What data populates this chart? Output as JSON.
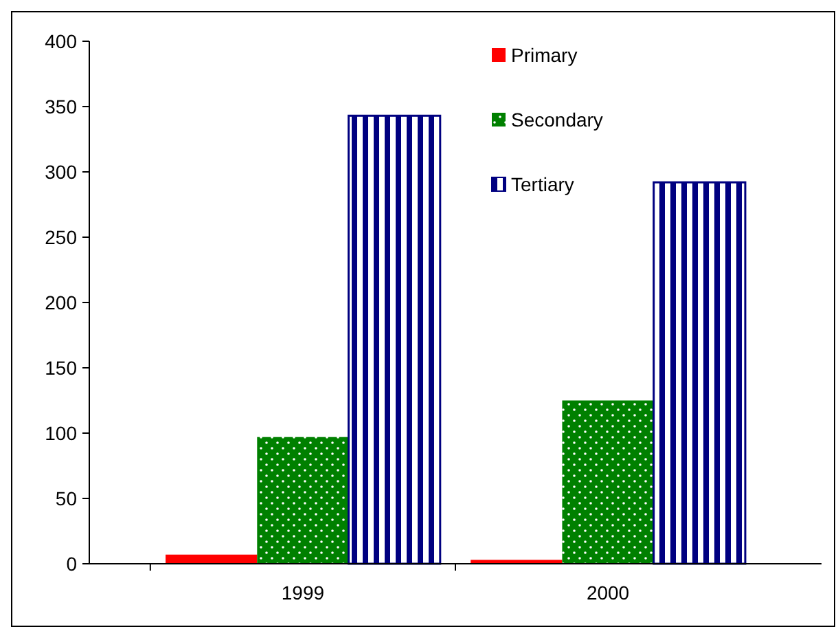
{
  "chart_data": {
    "type": "bar",
    "categories": [
      "1999",
      "2000"
    ],
    "series": [
      {
        "name": "Primary",
        "color": "#ff0000",
        "values": [
          7,
          3
        ]
      },
      {
        "name": "Secondary",
        "color": "#008000",
        "values": [
          97,
          125
        ]
      },
      {
        "name": "Tertiary",
        "color": "#000080",
        "values": [
          343,
          292
        ]
      }
    ],
    "ylim": [
      0,
      400
    ],
    "yticks": [
      0,
      50,
      100,
      150,
      200,
      250,
      300,
      350,
      400
    ],
    "grid": false,
    "legend": "top right"
  }
}
